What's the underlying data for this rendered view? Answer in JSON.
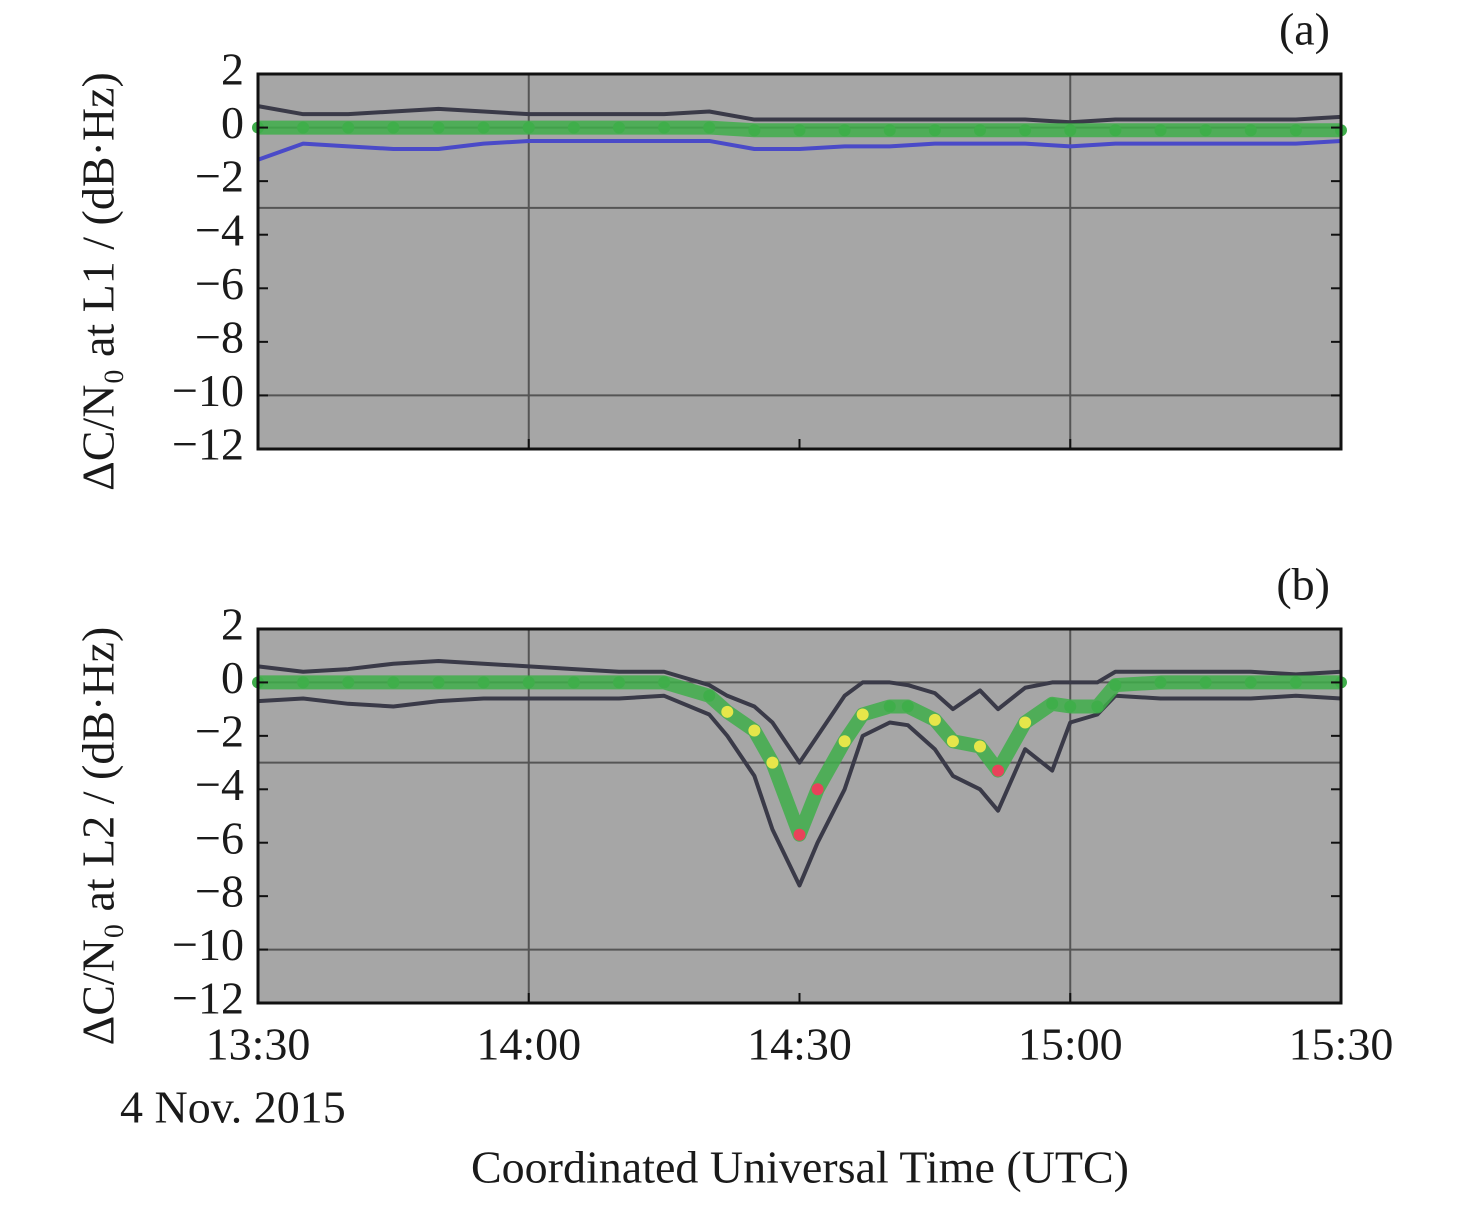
{
  "chart_data": [
    {
      "type": "line",
      "panel_label": "(a)",
      "y_label": "ΔC/N₀ at L1 / (dB·Hz)",
      "xlim": [
        "13:30",
        "15:30"
      ],
      "xticks": [
        "13:30",
        "14:00",
        "14:30",
        "15:00",
        "15:30"
      ],
      "show_xtick_labels": false,
      "ylim": [
        -12,
        2
      ],
      "yticks": [
        2,
        {
          "value": 0,
          "label": "0"
        },
        {
          "value": -2,
          "label": "−2"
        },
        {
          "value": -4,
          "label": "−4"
        },
        {
          "value": -6,
          "label": "−6"
        },
        {
          "value": -8,
          "label": "−8"
        },
        {
          "value": -10,
          "label": "−10"
        },
        {
          "value": -12,
          "label": "−12"
        }
      ],
      "hlines": [
        0,
        -3,
        -10
      ],
      "vlines": [
        "14:00",
        "15:00"
      ],
      "thresholds": [
        -1,
        -3
      ],
      "level_colors": [
        "#3fae4a",
        "#e6e64a",
        "#e8425a"
      ],
      "x": [
        "13:30",
        "13:35",
        "13:40",
        "13:45",
        "13:50",
        "13:55",
        "14:00",
        "14:05",
        "14:10",
        "14:15",
        "14:20",
        "14:25",
        "14:30",
        "14:35",
        "14:40",
        "14:45",
        "14:50",
        "14:55",
        "15:00",
        "15:05",
        "15:10",
        "15:15",
        "15:20",
        "15:25",
        "15:30"
      ],
      "series": [
        {
          "color": "#3a3a48",
          "values": [
            0.8,
            0.5,
            0.5,
            0.6,
            0.7,
            0.6,
            0.5,
            0.5,
            0.5,
            0.5,
            0.6,
            0.3,
            0.3,
            0.3,
            0.3,
            0.3,
            0.3,
            0.3,
            0.2,
            0.3,
            0.3,
            0.3,
            0.3,
            0.3,
            0.4
          ]
        },
        {
          "color": "#4a4ac8",
          "values": [
            -1.2,
            -0.6,
            -0.7,
            -0.8,
            -0.8,
            -0.6,
            -0.5,
            -0.5,
            -0.5,
            -0.5,
            -0.5,
            -0.8,
            -0.8,
            -0.7,
            -0.7,
            -0.6,
            -0.6,
            -0.6,
            -0.7,
            -0.6,
            -0.6,
            -0.6,
            -0.6,
            -0.6,
            -0.5
          ]
        },
        {
          "color": "#3fae4a",
          "mean": true,
          "values": [
            0,
            0,
            0,
            0,
            0,
            0,
            0,
            0,
            0,
            0,
            0,
            -0.1,
            -0.1,
            -0.1,
            -0.1,
            -0.1,
            -0.1,
            -0.1,
            -0.1,
            -0.1,
            -0.1,
            -0.1,
            -0.1,
            -0.1,
            -0.1
          ]
        }
      ]
    },
    {
      "type": "line",
      "panel_label": "(b)",
      "y_label": "ΔC/N₀ at L2 / (dB·Hz)",
      "xlim": [
        "13:30",
        "15:30"
      ],
      "xticks": [
        "13:30",
        "14:00",
        "14:30",
        "15:00",
        "15:30"
      ],
      "show_xtick_labels": true,
      "date_label": "4 Nov. 2015",
      "x_label": "Coordinated Universal Time (UTC)",
      "ylim": [
        -12,
        2
      ],
      "yticks": [
        2,
        {
          "value": 0,
          "label": "0"
        },
        {
          "value": -2,
          "label": "−2"
        },
        {
          "value": -4,
          "label": "−4"
        },
        {
          "value": -6,
          "label": "−6"
        },
        {
          "value": -8,
          "label": "−8"
        },
        {
          "value": -10,
          "label": "−10"
        },
        {
          "value": -12,
          "label": "−12"
        }
      ],
      "hlines": [
        0,
        -3,
        -10
      ],
      "vlines": [
        "14:00",
        "15:00"
      ],
      "thresholds": [
        -1,
        -3
      ],
      "level_colors": [
        "#3fae4a",
        "#e6e64a",
        "#e8425a"
      ],
      "x": [
        "13:30",
        "13:35",
        "13:40",
        "13:45",
        "13:50",
        "13:55",
        "14:00",
        "14:05",
        "14:10",
        "14:15",
        "14:20",
        "14:22",
        "14:25",
        "14:27",
        "14:30",
        "14:32",
        "14:35",
        "14:37",
        "14:40",
        "14:42",
        "14:45",
        "14:47",
        "14:50",
        "14:52",
        "14:55",
        "14:58",
        "15:00",
        "15:03",
        "15:05",
        "15:10",
        "15:15",
        "15:20",
        "15:25",
        "15:30"
      ],
      "series": [
        {
          "color": "#3a3a48",
          "values": [
            0.6,
            0.4,
            0.5,
            0.7,
            0.8,
            0.7,
            0.6,
            0.5,
            0.4,
            0.4,
            -0.1,
            -0.5,
            -0.9,
            -1.5,
            -3,
            -2,
            -0.5,
            0,
            0,
            -0.1,
            -0.4,
            -1,
            -0.3,
            -1,
            -0.2,
            0,
            0,
            0,
            0.4,
            0.4,
            0.4,
            0.4,
            0.3,
            0.4
          ]
        },
        {
          "color": "#3a3a48",
          "values": [
            -0.7,
            -0.6,
            -0.8,
            -0.9,
            -0.7,
            -0.6,
            -0.6,
            -0.6,
            -0.6,
            -0.5,
            -1.2,
            -2,
            -3.5,
            -5.5,
            -7.6,
            -6,
            -4,
            -2,
            -1.5,
            -1.6,
            -2.5,
            -3.5,
            -4,
            -4.8,
            -2.5,
            -3.3,
            -1.5,
            -1.2,
            -0.5,
            -0.6,
            -0.6,
            -0.6,
            -0.5,
            -0.6
          ]
        },
        {
          "color": "#3fae4a",
          "mean": true,
          "values": [
            0,
            0,
            0,
            0,
            0,
            0,
            0,
            0,
            0,
            0,
            -0.5,
            -1.1,
            -1.8,
            -3,
            -5.7,
            -4,
            -2.2,
            -1.2,
            -0.9,
            -0.9,
            -1.4,
            -2.2,
            -2.4,
            -3.3,
            -1.5,
            -0.8,
            -0.9,
            -0.9,
            -0.1,
            0,
            0,
            0,
            0,
            0
          ]
        }
      ]
    }
  ]
}
